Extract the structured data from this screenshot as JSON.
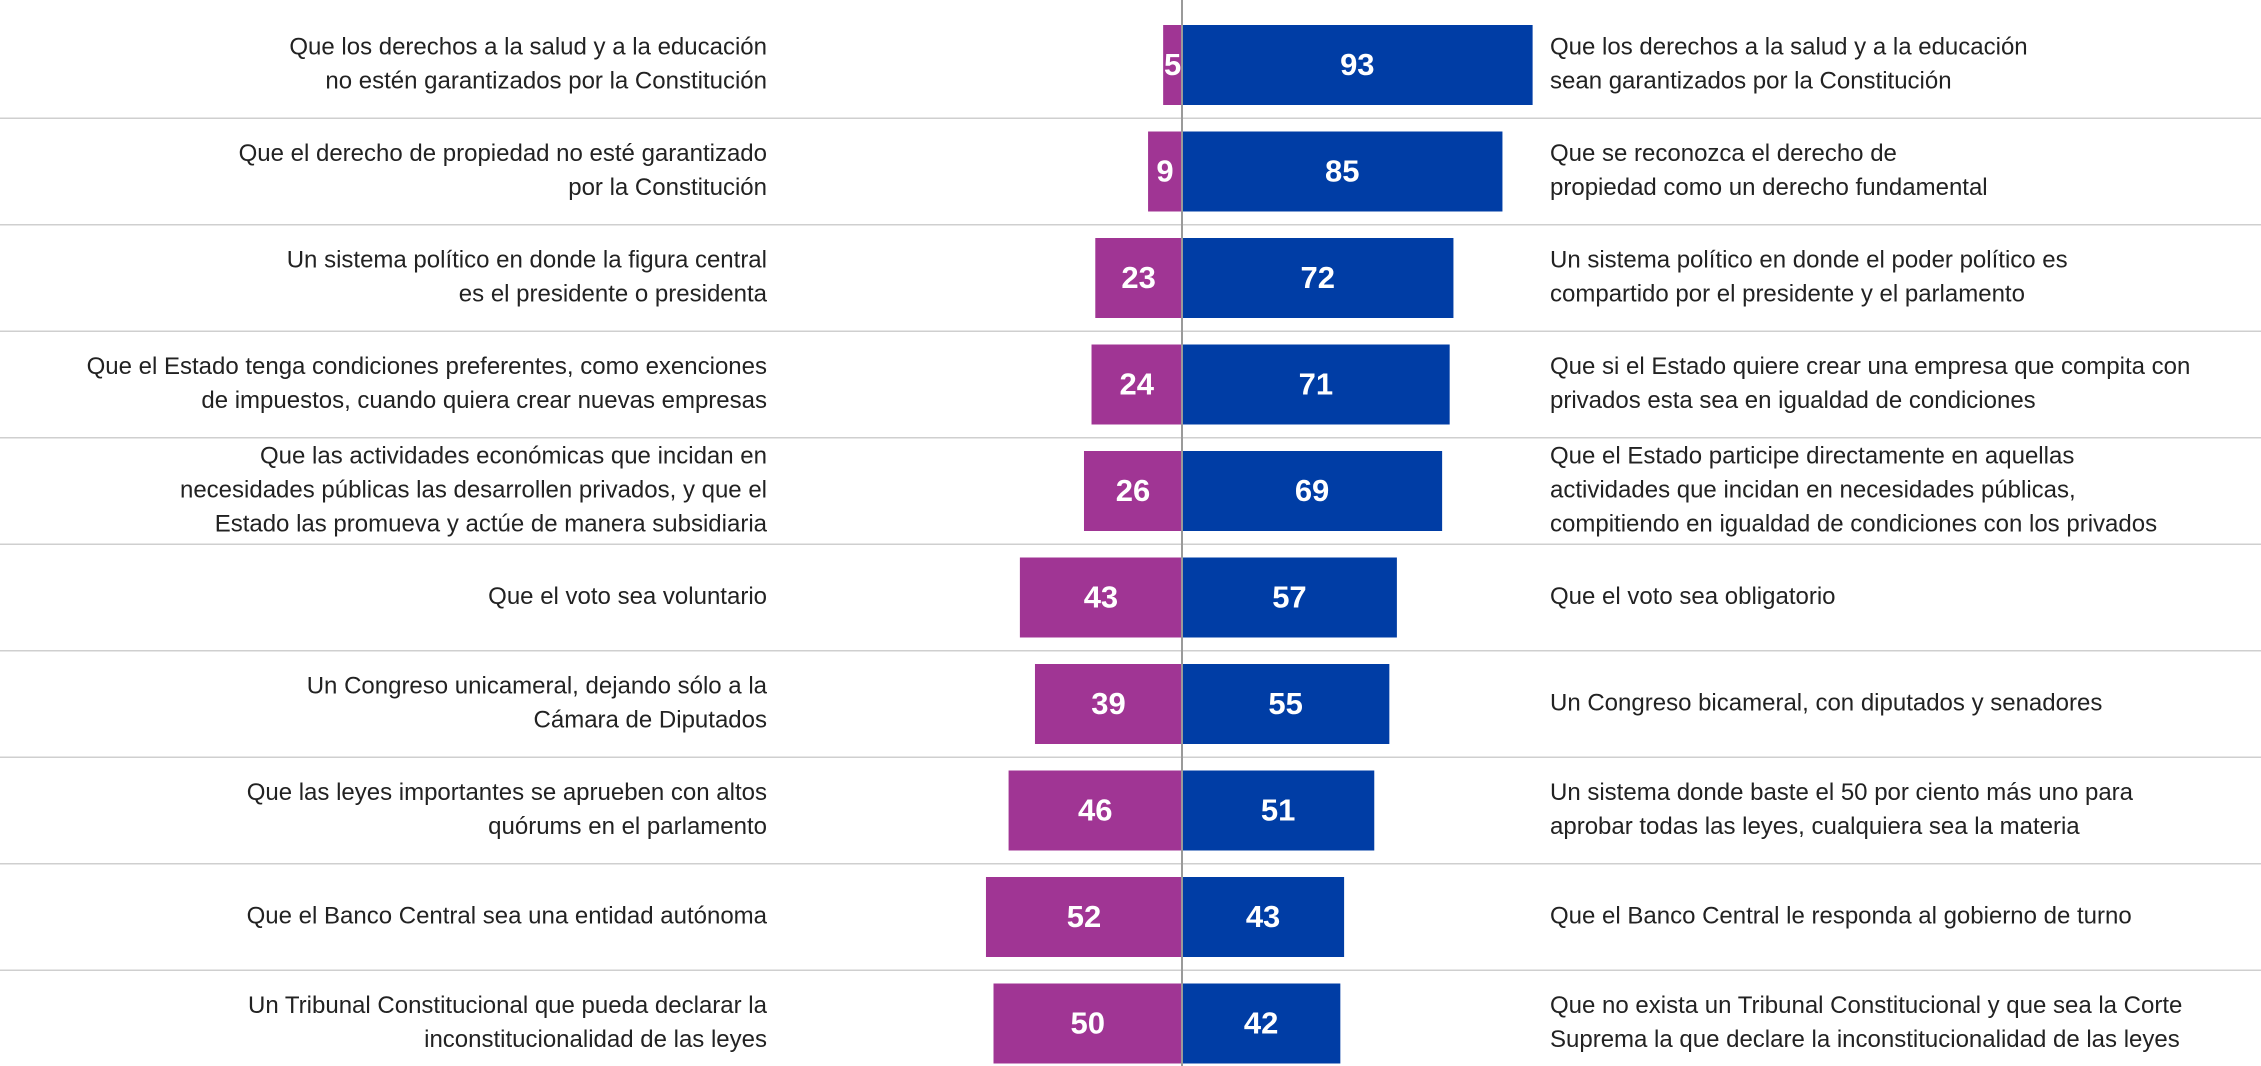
{
  "chart_data": {
    "type": "diverging_bar",
    "left_labels": [
      [
        "Que los derechos a la salud y a la educación",
        "no estén garantizados por la Constitución"
      ],
      [
        "Que el derecho de propiedad no esté garantizado",
        "por la Constitución"
      ],
      [
        "Un sistema político en donde la figura central",
        "es el presidente o presidenta"
      ],
      [
        "Que el Estado tenga condiciones preferentes, como exenciones",
        "de impuestos, cuando quiera crear nuevas empresas"
      ],
      [
        "Que las actividades económicas que incidan en",
        "necesidades públicas las desarrollen privados, y que el",
        "Estado las promueva y actúe de manera subsidiaria"
      ],
      [
        "Que el voto sea voluntario"
      ],
      [
        "Un Congreso unicameral, dejando sólo a la",
        "Cámara de Diputados"
      ],
      [
        "Que las leyes importantes se aprueben con altos",
        "quórums en el parlamento"
      ],
      [
        "Que el Banco Central sea una entidad autónoma"
      ],
      [
        "Un Tribunal Constitucional que pueda declarar la",
        "inconstitucionalidad de las leyes"
      ]
    ],
    "right_labels": [
      [
        "Que los derechos a la salud y a la educación",
        "sean garantizados por la Constitución"
      ],
      [
        "Que se reconozca el derecho de",
        "propiedad como un derecho fundamental"
      ],
      [
        "Un sistema político en donde el poder político es",
        "compartido por el presidente y el parlamento"
      ],
      [
        "Que si el Estado quiere crear una empresa que compita con",
        "privados esta sea en igualdad de condiciones"
      ],
      [
        "Que el Estado participe directamente en aquellas",
        "actividades que incidan en necesidades públicas,",
        "compitiendo en igualdad de condiciones con los privados"
      ],
      [
        "Que el voto sea obligatorio"
      ],
      [
        "Un Congreso bicameral, con diputados y senadores"
      ],
      [
        "Un sistema donde baste el 50 por ciento más uno para",
        "aprobar todas las leyes, cualquiera sea la materia"
      ],
      [
        "Que el Banco Central le responda al gobierno de turno"
      ],
      [
        "Que no exista un Tribunal Constitucional y que sea la Corte",
        "Suprema la que declare la inconstitucionalidad de las leyes"
      ]
    ],
    "series": [
      {
        "color": "#a03594",
        "values": [
          5,
          9,
          23,
          24,
          26,
          43,
          39,
          46,
          52,
          50
        ]
      },
      {
        "color": "#003da5",
        "values": [
          93,
          85,
          72,
          71,
          69,
          57,
          55,
          51,
          43,
          42
        ]
      }
    ]
  }
}
